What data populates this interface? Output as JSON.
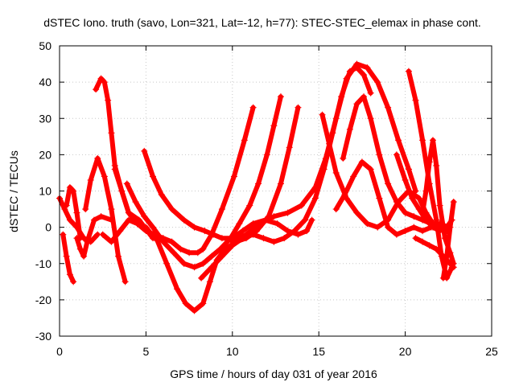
{
  "chart_data": {
    "type": "scatter",
    "title": "dSTEC Iono. truth (savo, Lon=321, Lat=-12, h=77): STEC-STEC_elemax in phase cont.",
    "xlabel": "GPS time / hours of day 031 of year 2016",
    "ylabel": "dSTEC  / TECUs",
    "xlim": [
      0,
      25
    ],
    "ylim": [
      -30,
      50
    ],
    "xticks": [
      0,
      5,
      10,
      15,
      20,
      25
    ],
    "yticks": [
      -30,
      -20,
      -10,
      0,
      10,
      20,
      30,
      40,
      50
    ],
    "xtick_labels": [
      "0",
      "5",
      "10",
      "15",
      "20",
      "25"
    ],
    "ytick_labels": [
      "-30",
      "-20",
      "-10",
      "0",
      "10",
      "20",
      "30",
      "40",
      "50"
    ],
    "grid": true,
    "marker": "plus",
    "color": "#ff0000",
    "series": [
      {
        "x": [
          0.0,
          0.3,
          0.6,
          1.0,
          1.4,
          1.8,
          2.2
        ],
        "y": [
          8,
          5,
          2,
          0,
          -3,
          -4,
          -2
        ]
      },
      {
        "x": [
          0.2,
          0.4,
          0.6,
          0.8
        ],
        "y": [
          -2,
          -8,
          -13,
          -15
        ]
      },
      {
        "x": [
          0.4,
          0.6,
          0.8,
          1.0,
          1.2
        ],
        "y": [
          6,
          11,
          10,
          4,
          -3
        ]
      },
      {
        "x": [
          1.0,
          1.2,
          1.4,
          1.6,
          2.0,
          2.4,
          3.0
        ],
        "y": [
          -3,
          -6,
          -8,
          -4,
          2,
          3,
          2
        ]
      },
      {
        "x": [
          1.5,
          1.8,
          2.2,
          2.6,
          3.0,
          3.4,
          3.8
        ],
        "y": [
          5,
          13,
          19,
          14,
          5,
          -8,
          -15
        ]
      },
      {
        "x": [
          2.1,
          2.4,
          2.6,
          2.8,
          3.0,
          3.2,
          3.6,
          4.0,
          4.6,
          5.4
        ],
        "y": [
          38,
          41,
          40,
          35,
          26,
          17,
          10,
          4,
          2,
          -3
        ]
      },
      {
        "x": [
          2.5,
          3.0,
          3.5,
          4.0,
          4.5,
          5.0,
          5.5
        ],
        "y": [
          -2,
          -4,
          -1,
          2,
          1,
          0,
          -3
        ]
      },
      {
        "x": [
          3.2,
          3.6,
          4.0,
          4.5,
          5.0,
          5.5,
          6.0,
          6.5,
          7.0,
          7.5,
          8.0,
          8.3,
          8.8,
          9.4,
          10.1,
          10.7,
          11.2
        ],
        "y": [
          16,
          10,
          4,
          1,
          -1,
          -2,
          -3,
          -4,
          -6,
          -7,
          -7,
          -6,
          -2,
          5,
          14,
          24,
          33
        ]
      },
      {
        "x": [
          3.9,
          4.4,
          4.9,
          5.4,
          6.0,
          6.6,
          7.2,
          7.8,
          8.3,
          8.8,
          9.3,
          9.9,
          10.4,
          11.0,
          11.5,
          12.0,
          12.4,
          12.8
        ],
        "y": [
          12,
          7,
          3,
          0,
          -4,
          -7,
          -10,
          -11,
          -10,
          -8,
          -6,
          -3,
          1,
          6,
          12,
          20,
          28,
          36
        ]
      },
      {
        "x": [
          4.9,
          5.4,
          5.9,
          6.5,
          7.2,
          7.8,
          8.4,
          8.9,
          9.4,
          10.0,
          10.6,
          11.2,
          11.9,
          12.6,
          13.2,
          13.8,
          14.3,
          14.6
        ],
        "y": [
          21,
          14,
          9,
          5,
          2,
          0,
          -1,
          -2,
          -3,
          -3,
          -1,
          1,
          2,
          1,
          -1,
          -2,
          -1,
          2
        ]
      },
      {
        "x": [
          5.6,
          6.2,
          6.8,
          7.3,
          7.8,
          8.3,
          8.7,
          9.1,
          9.6,
          10.2,
          10.8,
          11.4,
          12.1,
          12.8,
          13.3,
          13.8
        ],
        "y": [
          -3,
          -10,
          -17,
          -21,
          -23,
          -21,
          -15,
          -9,
          -6,
          -4,
          -3,
          -1,
          3,
          12,
          22,
          33
        ]
      },
      {
        "x": [
          8.2,
          8.8,
          9.4,
          10.0,
          10.6,
          11.2,
          11.8,
          12.4,
          13.0,
          13.6,
          14.2,
          14.8,
          15.3,
          15.8,
          16.3,
          16.8,
          17.2,
          17.6,
          18.0
        ],
        "y": [
          -14,
          -11,
          -8,
          -5,
          -3,
          -2,
          -3,
          -4,
          -3,
          -1,
          2,
          8,
          16,
          26,
          36,
          43,
          44,
          42,
          37
        ]
      },
      {
        "x": [
          10.0,
          10.8,
          11.6,
          12.4,
          13.2,
          14.0,
          14.8,
          15.4,
          16.0,
          16.6,
          17.2,
          17.8,
          18.4,
          19.0,
          19.6,
          20.2,
          20.6
        ],
        "y": [
          -4,
          -2,
          1,
          3,
          4,
          6,
          11,
          19,
          30,
          41,
          45,
          44,
          40,
          33,
          24,
          16,
          10
        ]
      },
      {
        "x": [
          15.2,
          15.6,
          16.0,
          16.6,
          17.2,
          17.8,
          18.4,
          19.0,
          19.6,
          20.2,
          20.8,
          21.2,
          21.6
        ],
        "y": [
          31,
          23,
          15,
          8,
          4,
          1,
          0,
          2,
          7,
          10,
          8,
          4,
          1
        ]
      },
      {
        "x": [
          16.0,
          16.5,
          17.0,
          17.5,
          18.0,
          18.5,
          19.0,
          19.5,
          20.0,
          20.5,
          21.0,
          21.5,
          22.0,
          22.5
        ],
        "y": [
          5,
          9,
          14,
          18,
          16,
          8,
          0,
          -2,
          -1,
          0,
          -1,
          0,
          1,
          0
        ]
      },
      {
        "x": [
          16.4,
          16.8,
          17.2,
          17.6,
          18.0,
          18.5,
          19.0,
          19.5,
          20.0,
          20.5,
          21.0,
          21.5,
          22.0,
          22.4
        ],
        "y": [
          19,
          27,
          34,
          36,
          30,
          20,
          12,
          7,
          4,
          3,
          2,
          1,
          0,
          -1
        ]
      },
      {
        "x": [
          19.5,
          20.0,
          20.4,
          20.8,
          21.2,
          21.6,
          22.0,
          22.4,
          22.7
        ],
        "y": [
          20,
          13,
          8,
          5,
          2,
          0,
          -1,
          0,
          2
        ]
      },
      {
        "x": [
          20.2,
          20.6,
          21.0,
          21.4,
          21.8,
          22.1,
          22.4,
          22.7
        ],
        "y": [
          43,
          35,
          24,
          12,
          2,
          -8,
          -14,
          -11
        ]
      },
      {
        "x": [
          20.6,
          21.0,
          21.4,
          21.8,
          22.2,
          22.6,
          22.8
        ],
        "y": [
          -3,
          -4,
          -5,
          -6,
          -8,
          -10,
          -11
        ]
      },
      {
        "x": [
          21.0,
          21.2,
          21.4,
          21.6,
          21.8,
          22.0,
          22.3,
          22.6,
          22.8
        ],
        "y": [
          4,
          10,
          18,
          24,
          17,
          6,
          -3,
          -7,
          -10
        ]
      },
      {
        "x": [
          22.2,
          22.4,
          22.6,
          22.8
        ],
        "y": [
          -14,
          -8,
          0,
          7
        ]
      }
    ]
  }
}
